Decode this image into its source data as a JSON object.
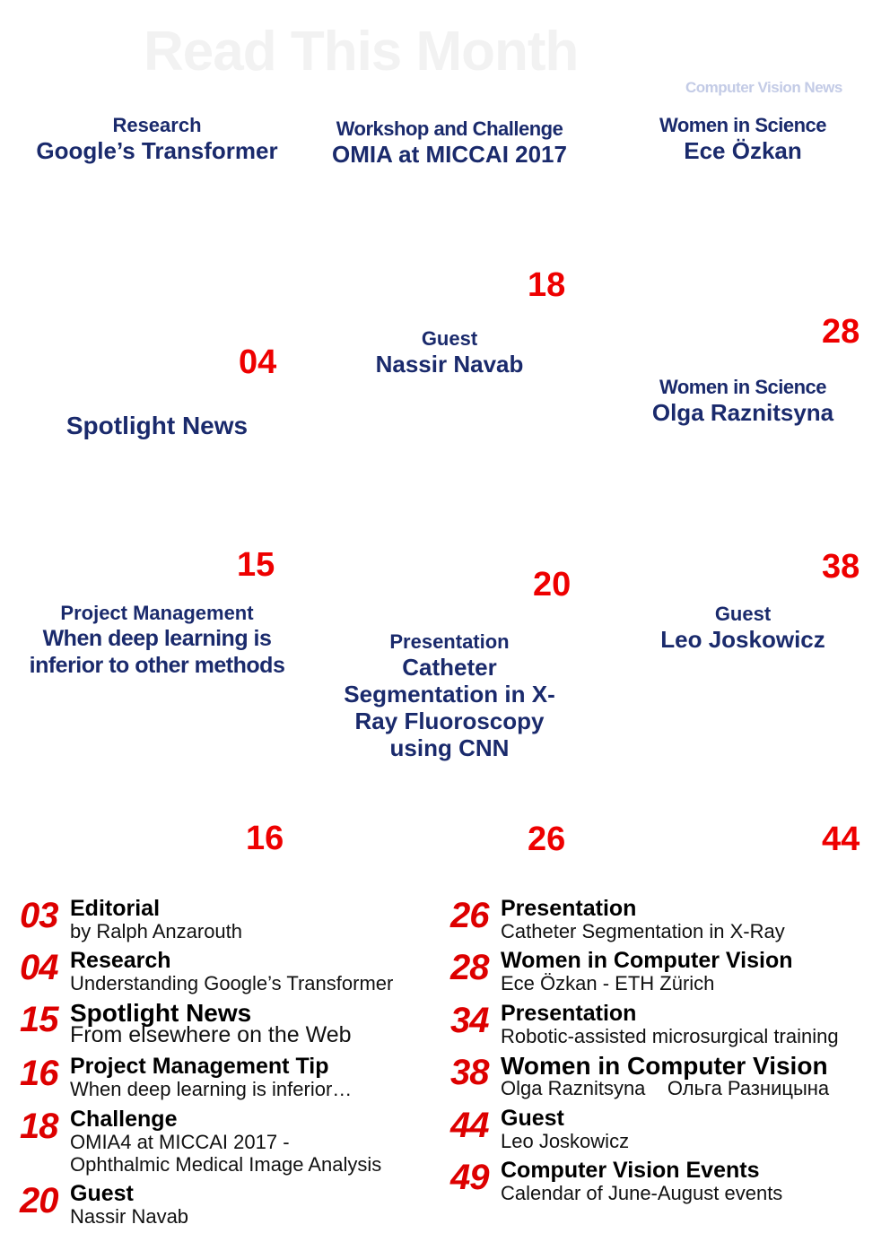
{
  "header": {
    "title": "Read This Month",
    "brand": "Computer Vision News"
  },
  "tiles": [
    {
      "cat": "Research",
      "title": "Google’s Transformer"
    },
    {
      "cat": "Workshop and Challenge",
      "title": "OMIA at MICCAI 2017"
    },
    {
      "cat": "Women in Science",
      "title": "Ece Özkan"
    },
    {
      "cat": "Guest",
      "title": "Nassir Navab"
    },
    {
      "title": "Spotlight News"
    },
    {
      "cat": "Women in Science",
      "title": "Olga Raznitsyna"
    },
    {
      "cat": "Project Management",
      "title": "When deep learning is inferior to other methods"
    },
    {
      "cat": "Presentation",
      "title": "Catheter Segmentation in X-Ray Fluoroscopy using CNN"
    },
    {
      "cat": "Guest",
      "title": "Leo Joskowicz"
    }
  ],
  "page_numbers": [
    "18",
    "28",
    "04",
    "15",
    "38",
    "20",
    "16",
    "26",
    "44"
  ],
  "toc_left": [
    {
      "num": "03",
      "title": "Editorial",
      "sub": "by Ralph Anzarouth"
    },
    {
      "num": "04",
      "title": "Research",
      "sub": "Understanding Google’s Transformer"
    },
    {
      "num": "15",
      "title": "Spotlight News",
      "sub": "From elsewhere on the Web"
    },
    {
      "num": "16",
      "title": "Project Management Tip",
      "sub": "When deep learning is inferior…"
    },
    {
      "num": "18",
      "title": "Challenge",
      "sub": "OMIA4 at MICCAI 2017 -",
      "sub2": "Ophthalmic Medical Image Analysis"
    },
    {
      "num": "20",
      "title": "Guest",
      "sub": "Nassir Navab"
    }
  ],
  "toc_right": [
    {
      "num": "26",
      "title": "Presentation",
      "sub": "Catheter Segmentation in X-Ray"
    },
    {
      "num": "28",
      "title": "Women in Computer Vision",
      "sub": "Ece Özkan - ETH Zürich"
    },
    {
      "num": "34",
      "title": "Presentation",
      "sub": "Robotic-assisted microsurgical training"
    },
    {
      "num": "38",
      "title": "Women in Computer Vision",
      "sub": "Olga Raznitsyna    Ольга Разницына"
    },
    {
      "num": "44",
      "title": "Guest",
      "sub": "Leo Joskowicz"
    },
    {
      "num": "49",
      "title": "Computer Vision Events",
      "sub": "Calendar of June-August events"
    }
  ]
}
